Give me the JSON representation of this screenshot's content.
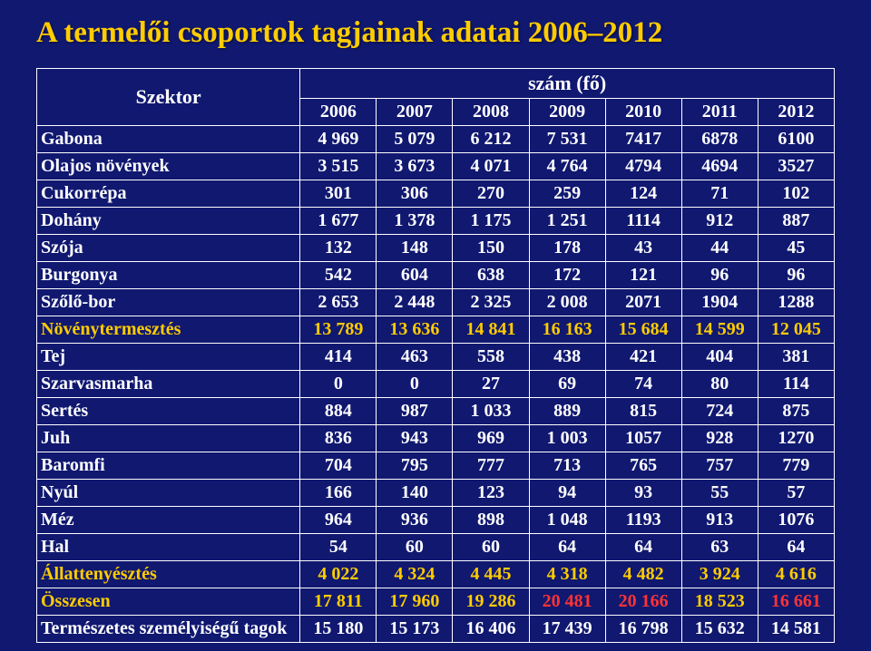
{
  "title": "A termelői csoportok tagjainak adatai 2006–2012",
  "header": {
    "sector": "Szektor",
    "count": "szám (fő)",
    "years": [
      "2006",
      "2007",
      "2008",
      "2009",
      "2010",
      "2011",
      "2012"
    ]
  },
  "colors": {
    "white": "#ffffff",
    "yellow": "#ffcc00",
    "red": "#ff3333"
  },
  "rows": [
    {
      "label": "Gabona",
      "labelColor": "#ffffff",
      "cells": [
        {
          "v": "4 969",
          "c": "#ffffff"
        },
        {
          "v": "5 079",
          "c": "#ffffff"
        },
        {
          "v": "6 212",
          "c": "#ffffff"
        },
        {
          "v": "7 531",
          "c": "#ffffff"
        },
        {
          "v": "7417",
          "c": "#ffffff"
        },
        {
          "v": "6878",
          "c": "#ffffff"
        },
        {
          "v": "6100",
          "c": "#ffffff"
        }
      ]
    },
    {
      "label": "Olajos növények",
      "labelColor": "#ffffff",
      "cells": [
        {
          "v": "3 515",
          "c": "#ffffff"
        },
        {
          "v": "3 673",
          "c": "#ffffff"
        },
        {
          "v": "4 071",
          "c": "#ffffff"
        },
        {
          "v": "4 764",
          "c": "#ffffff"
        },
        {
          "v": "4794",
          "c": "#ffffff"
        },
        {
          "v": "4694",
          "c": "#ffffff"
        },
        {
          "v": "3527",
          "c": "#ffffff"
        }
      ]
    },
    {
      "label": "Cukorrépa",
      "labelColor": "#ffffff",
      "cells": [
        {
          "v": "301",
          "c": "#ffffff"
        },
        {
          "v": "306",
          "c": "#ffffff"
        },
        {
          "v": "270",
          "c": "#ffffff"
        },
        {
          "v": "259",
          "c": "#ffffff"
        },
        {
          "v": "124",
          "c": "#ffffff"
        },
        {
          "v": "71",
          "c": "#ffffff"
        },
        {
          "v": "102",
          "c": "#ffffff"
        }
      ]
    },
    {
      "label": "Dohány",
      "labelColor": "#ffffff",
      "cells": [
        {
          "v": "1 677",
          "c": "#ffffff"
        },
        {
          "v": "1 378",
          "c": "#ffffff"
        },
        {
          "v": "1 175",
          "c": "#ffffff"
        },
        {
          "v": "1 251",
          "c": "#ffffff"
        },
        {
          "v": "1114",
          "c": "#ffffff"
        },
        {
          "v": "912",
          "c": "#ffffff"
        },
        {
          "v": "887",
          "c": "#ffffff"
        }
      ]
    },
    {
      "label": "Szója",
      "labelColor": "#ffffff",
      "cells": [
        {
          "v": "132",
          "c": "#ffffff"
        },
        {
          "v": "148",
          "c": "#ffffff"
        },
        {
          "v": "150",
          "c": "#ffffff"
        },
        {
          "v": "178",
          "c": "#ffffff"
        },
        {
          "v": "43",
          "c": "#ffffff"
        },
        {
          "v": "44",
          "c": "#ffffff"
        },
        {
          "v": "45",
          "c": "#ffffff"
        }
      ]
    },
    {
      "label": "Burgonya",
      "labelColor": "#ffffff",
      "cells": [
        {
          "v": "542",
          "c": "#ffffff"
        },
        {
          "v": "604",
          "c": "#ffffff"
        },
        {
          "v": "638",
          "c": "#ffffff"
        },
        {
          "v": "172",
          "c": "#ffffff"
        },
        {
          "v": "121",
          "c": "#ffffff"
        },
        {
          "v": "96",
          "c": "#ffffff"
        },
        {
          "v": "96",
          "c": "#ffffff"
        }
      ]
    },
    {
      "label": "Szőlő-bor",
      "labelColor": "#ffffff",
      "cells": [
        {
          "v": "2 653",
          "c": "#ffffff"
        },
        {
          "v": "2 448",
          "c": "#ffffff"
        },
        {
          "v": "2 325",
          "c": "#ffffff"
        },
        {
          "v": "2 008",
          "c": "#ffffff"
        },
        {
          "v": "2071",
          "c": "#ffffff"
        },
        {
          "v": "1904",
          "c": "#ffffff"
        },
        {
          "v": "1288",
          "c": "#ffffff"
        }
      ]
    },
    {
      "label": "Növénytermesztés",
      "labelColor": "#ffcc00",
      "cells": [
        {
          "v": "13 789",
          "c": "#ffcc00"
        },
        {
          "v": "13 636",
          "c": "#ffcc00"
        },
        {
          "v": "14 841",
          "c": "#ffcc00"
        },
        {
          "v": "16 163",
          "c": "#ffcc00"
        },
        {
          "v": "15 684",
          "c": "#ffcc00"
        },
        {
          "v": "14 599",
          "c": "#ffcc00"
        },
        {
          "v": "12 045",
          "c": "#ffcc00"
        }
      ]
    },
    {
      "label": "Tej",
      "labelColor": "#ffffff",
      "cells": [
        {
          "v": "414",
          "c": "#ffffff"
        },
        {
          "v": "463",
          "c": "#ffffff"
        },
        {
          "v": "558",
          "c": "#ffffff"
        },
        {
          "v": "438",
          "c": "#ffffff"
        },
        {
          "v": "421",
          "c": "#ffffff"
        },
        {
          "v": "404",
          "c": "#ffffff"
        },
        {
          "v": "381",
          "c": "#ffffff"
        }
      ]
    },
    {
      "label": "Szarvasmarha",
      "labelColor": "#ffffff",
      "cells": [
        {
          "v": "0",
          "c": "#ffffff"
        },
        {
          "v": "0",
          "c": "#ffffff"
        },
        {
          "v": "27",
          "c": "#ffffff"
        },
        {
          "v": "69",
          "c": "#ffffff"
        },
        {
          "v": "74",
          "c": "#ffffff"
        },
        {
          "v": "80",
          "c": "#ffffff"
        },
        {
          "v": "114",
          "c": "#ffffff"
        }
      ]
    },
    {
      "label": "Sertés",
      "labelColor": "#ffffff",
      "cells": [
        {
          "v": "884",
          "c": "#ffffff"
        },
        {
          "v": "987",
          "c": "#ffffff"
        },
        {
          "v": "1 033",
          "c": "#ffffff"
        },
        {
          "v": "889",
          "c": "#ffffff"
        },
        {
          "v": "815",
          "c": "#ffffff"
        },
        {
          "v": "724",
          "c": "#ffffff"
        },
        {
          "v": "875",
          "c": "#ffffff"
        }
      ]
    },
    {
      "label": "Juh",
      "labelColor": "#ffffff",
      "cells": [
        {
          "v": "836",
          "c": "#ffffff"
        },
        {
          "v": "943",
          "c": "#ffffff"
        },
        {
          "v": "969",
          "c": "#ffffff"
        },
        {
          "v": "1 003",
          "c": "#ffffff"
        },
        {
          "v": "1057",
          "c": "#ffffff"
        },
        {
          "v": "928",
          "c": "#ffffff"
        },
        {
          "v": "1270",
          "c": "#ffffff"
        }
      ]
    },
    {
      "label": "Baromfi",
      "labelColor": "#ffffff",
      "cells": [
        {
          "v": "704",
          "c": "#ffffff"
        },
        {
          "v": "795",
          "c": "#ffffff"
        },
        {
          "v": "777",
          "c": "#ffffff"
        },
        {
          "v": "713",
          "c": "#ffffff"
        },
        {
          "v": "765",
          "c": "#ffffff"
        },
        {
          "v": "757",
          "c": "#ffffff"
        },
        {
          "v": "779",
          "c": "#ffffff"
        }
      ]
    },
    {
      "label": "Nyúl",
      "labelColor": "#ffffff",
      "cells": [
        {
          "v": "166",
          "c": "#ffffff"
        },
        {
          "v": "140",
          "c": "#ffffff"
        },
        {
          "v": "123",
          "c": "#ffffff"
        },
        {
          "v": "94",
          "c": "#ffffff"
        },
        {
          "v": "93",
          "c": "#ffffff"
        },
        {
          "v": "55",
          "c": "#ffffff"
        },
        {
          "v": "57",
          "c": "#ffffff"
        }
      ]
    },
    {
      "label": "Méz",
      "labelColor": "#ffffff",
      "cells": [
        {
          "v": "964",
          "c": "#ffffff"
        },
        {
          "v": "936",
          "c": "#ffffff"
        },
        {
          "v": "898",
          "c": "#ffffff"
        },
        {
          "v": "1 048",
          "c": "#ffffff"
        },
        {
          "v": "1193",
          "c": "#ffffff"
        },
        {
          "v": "913",
          "c": "#ffffff"
        },
        {
          "v": "1076",
          "c": "#ffffff"
        }
      ]
    },
    {
      "label": "Hal",
      "labelColor": "#ffffff",
      "cells": [
        {
          "v": "54",
          "c": "#ffffff"
        },
        {
          "v": "60",
          "c": "#ffffff"
        },
        {
          "v": "60",
          "c": "#ffffff"
        },
        {
          "v": "64",
          "c": "#ffffff"
        },
        {
          "v": "64",
          "c": "#ffffff"
        },
        {
          "v": "63",
          "c": "#ffffff"
        },
        {
          "v": "64",
          "c": "#ffffff"
        }
      ]
    },
    {
      "label": "Állattenyésztés",
      "labelColor": "#ffcc00",
      "cells": [
        {
          "v": "4 022",
          "c": "#ffcc00"
        },
        {
          "v": "4 324",
          "c": "#ffcc00"
        },
        {
          "v": "4 445",
          "c": "#ffcc00"
        },
        {
          "v": "4 318",
          "c": "#ffcc00"
        },
        {
          "v": "4 482",
          "c": "#ffcc00"
        },
        {
          "v": "3 924",
          "c": "#ffcc00"
        },
        {
          "v": "4 616",
          "c": "#ffcc00"
        }
      ]
    },
    {
      "label": "Összesen",
      "labelColor": "#ffcc00",
      "cells": [
        {
          "v": "17 811",
          "c": "#ffcc00"
        },
        {
          "v": "17 960",
          "c": "#ffcc00"
        },
        {
          "v": "19 286",
          "c": "#ffcc00"
        },
        {
          "v": "20 481",
          "c": "#ff3333"
        },
        {
          "v": "20 166",
          "c": "#ff3333"
        },
        {
          "v": "18 523",
          "c": "#ffcc00"
        },
        {
          "v": "16 661",
          "c": "#ff3333"
        }
      ]
    },
    {
      "label": "Természetes személyiségű tagok",
      "labelColor": "#ffffff",
      "cells": [
        {
          "v": "15 180",
          "c": "#ffffff"
        },
        {
          "v": "15 173",
          "c": "#ffffff"
        },
        {
          "v": "16 406",
          "c": "#ffffff"
        },
        {
          "v": "17 439",
          "c": "#ffffff"
        },
        {
          "v": "16 798",
          "c": "#ffffff"
        },
        {
          "v": "15 632",
          "c": "#ffffff"
        },
        {
          "v": "14 581",
          "c": "#ffffff"
        }
      ]
    }
  ]
}
